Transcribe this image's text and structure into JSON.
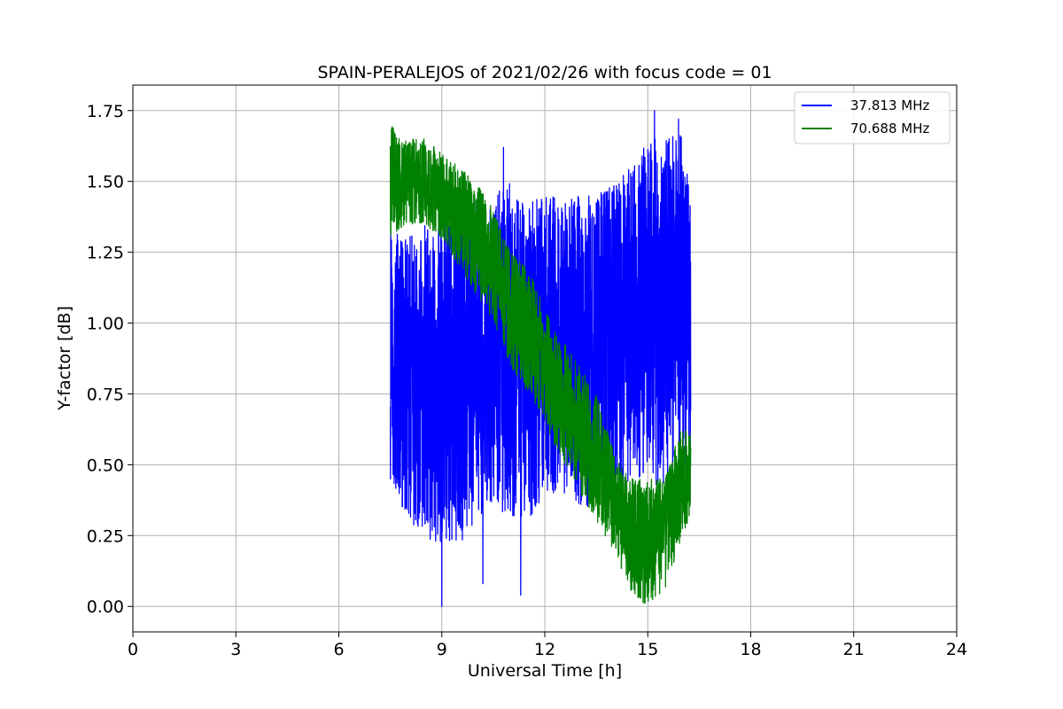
{
  "chart_data": {
    "type": "line",
    "title": "SPAIN-PERALEJOS of 2021/02/26 with focus code = 01",
    "xlabel": "Universal Time [h]",
    "ylabel": "Y-factor [dB]",
    "xlim": [
      0,
      24
    ],
    "ylim": [
      -0.09,
      1.84
    ],
    "xticks": [
      0,
      3,
      6,
      9,
      12,
      15,
      18,
      21,
      24
    ],
    "xtick_labels": [
      "0",
      "3",
      "6",
      "9",
      "12",
      "15",
      "18",
      "21",
      "24"
    ],
    "yticks": [
      0.0,
      0.25,
      0.5,
      0.75,
      1.0,
      1.25,
      1.5,
      1.75
    ],
    "ytick_labels": [
      "0.00",
      "0.25",
      "0.50",
      "0.75",
      "1.00",
      "1.25",
      "1.50",
      "1.75"
    ],
    "grid": true,
    "legend_position": "top-right",
    "series": [
      {
        "name": "37.813 MHz",
        "color": "#0000ff",
        "x_range": [
          7.5,
          16.25
        ],
        "envelope": {
          "x": [
            7.5,
            8.0,
            8.5,
            9.0,
            9.5,
            10.0,
            10.5,
            11.0,
            11.5,
            12.0,
            12.5,
            13.0,
            13.5,
            14.0,
            14.5,
            15.0,
            15.5,
            16.0,
            16.25
          ],
          "upper": [
            1.35,
            1.3,
            1.35,
            1.4,
            1.45,
            1.45,
            1.45,
            1.5,
            1.45,
            1.45,
            1.45,
            1.45,
            1.45,
            1.5,
            1.55,
            1.65,
            1.65,
            1.7,
            1.45
          ],
          "lower": [
            0.45,
            0.3,
            0.25,
            0.2,
            0.2,
            0.3,
            0.35,
            0.3,
            0.3,
            0.4,
            0.4,
            0.35,
            0.35,
            0.4,
            0.45,
            0.45,
            0.4,
            0.4,
            0.5
          ],
          "median": [
            0.95,
            0.85,
            0.85,
            0.85,
            0.85,
            0.85,
            0.85,
            0.85,
            0.85,
            0.9,
            0.95,
            0.95,
            0.95,
            1.0,
            1.05,
            1.1,
            1.1,
            1.1,
            1.0
          ]
        },
        "notable_spikes": [
          {
            "x": 9.0,
            "y": 0.0
          },
          {
            "x": 10.2,
            "y": 0.08
          },
          {
            "x": 10.8,
            "y": 1.62
          },
          {
            "x": 11.3,
            "y": 0.04
          },
          {
            "x": 15.2,
            "y": 1.75
          },
          {
            "x": 15.9,
            "y": 1.72
          }
        ]
      },
      {
        "name": "70.688 MHz",
        "color": "#008000",
        "x_range": [
          7.5,
          16.25
        ],
        "envelope": {
          "x": [
            7.5,
            8.0,
            8.5,
            9.0,
            9.5,
            10.0,
            10.5,
            11.0,
            11.5,
            12.0,
            12.5,
            13.0,
            13.5,
            14.0,
            14.5,
            15.0,
            15.5,
            16.0,
            16.25
          ],
          "upper": [
            1.7,
            1.65,
            1.65,
            1.6,
            1.55,
            1.5,
            1.4,
            1.25,
            1.2,
            1.05,
            0.95,
            0.85,
            0.75,
            0.55,
            0.45,
            0.45,
            0.45,
            0.65,
            0.6
          ],
          "lower": [
            1.3,
            1.35,
            1.35,
            1.3,
            1.2,
            1.1,
            1.0,
            0.85,
            0.75,
            0.65,
            0.5,
            0.4,
            0.3,
            0.2,
            0.05,
            0.0,
            0.05,
            0.25,
            0.3
          ],
          "median": [
            1.5,
            1.5,
            1.5,
            1.45,
            1.4,
            1.3,
            1.2,
            1.05,
            0.95,
            0.85,
            0.72,
            0.62,
            0.52,
            0.4,
            0.25,
            0.22,
            0.3,
            0.45,
            0.45
          ]
        }
      }
    ]
  },
  "colors": {
    "grid": "#b0b0b0",
    "axes": "#000000",
    "background": "#ffffff"
  }
}
